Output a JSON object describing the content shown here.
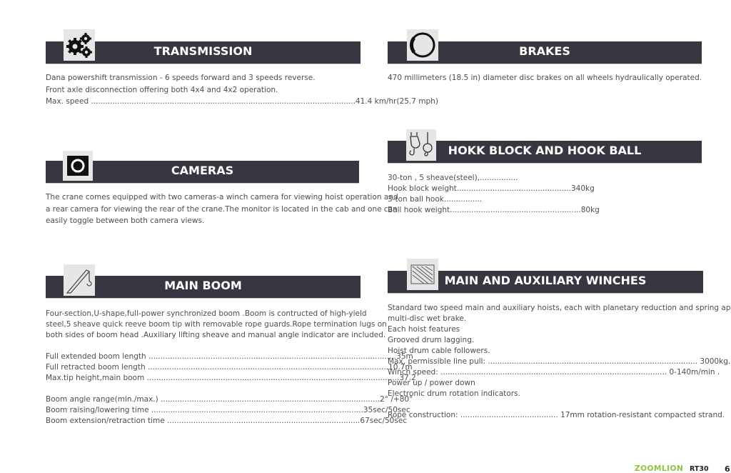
{
  "sections": {
    "transmission": {
      "title": "TRANSMISSION",
      "icon": "gears-icon",
      "lines": [
        "Dana powershift transmission - 6 speeds forward and 3 speeds reverse.",
        "Front axle disconnection offering both 4x4 and 4x2 operation.",
        "Max. speed ...............................................................................................................41.4 km/hr(25.7 mph)"
      ]
    },
    "brakes": {
      "title": "BRAKES",
      "icon": "disc-brake-icon",
      "lines": [
        "470 millimeters (18.5 in) diameter disc brakes on all wheels hydraulically operated."
      ]
    },
    "cameras": {
      "title": "CAMERAS",
      "icon": "camera-icon",
      "lines": [
        "The crane comes equipped with two cameras-a winch camera for viewing hoist operation and",
        "a rear camera for viewing the rear of the crane.The monitor is located in the cab and one can",
        "easily toggle between both camera views."
      ]
    },
    "hook": {
      "title": "HOKK BLOCK AND HOOK BALL",
      "icon": "hook-icon",
      "lines": [
        "30-ton , 5 sheave(steel),................",
        "Hook block weight................................................340kg",
        "3-ton ball hook................",
        "Ball hook weight.......................................................80kg"
      ]
    },
    "boom": {
      "title": "MAIN BOOM",
      "icon": "boom-icon",
      "lines": [
        "Four-section,U-shape,full-power synchronized boom .Boom is contructed of high-yield",
        "steel,5 sheave quick reeve boom tip with removable rope guards.Rope termination lugs on",
        "both sides of boom head .Auxiliary lifting sheave and manual angle indicator are included.",
        "",
        "Full extended boom length ........................................................................................................35m",
        "Full retracted boom length .....................................................................................................10.7m",
        "Max.tip height,main boom ..........................................................................................................37.2",
        "",
        "Boom angle range(min./max.) ............................................................................................2° /+80°",
        "Boom raising/lowering time .........................................................................................35sec/50sec",
        "Boom extension/retraction time .................................................................................67sec/50sec"
      ]
    },
    "winches": {
      "title": "MAIN AND AUXILIARY WINCHES",
      "icon": "winch-drum-icon",
      "lines": [
        "Standard two speed main and auxiliary hoists, each with planetary reduction and spring applied",
        "multi-disc wet brake.",
        "Each hoist features",
        "Grooved drum lagging.",
        "Hoist drum cable followers.",
        "Max. permissible line pull: ........................................................................................ 3000kg.",
        "Winch speed: ............................................................................................... 0-140m/min .",
        "Power up / power down",
        "Electronic drum rotation indicators.",
        "",
        "Rope construction: ......................................... 17mm rotation-resistant compacted strand."
      ]
    }
  },
  "footer": {
    "brand": "ZOOMLION",
    "model": "RT30",
    "page": "6",
    "brand_color": "#8dc63f"
  },
  "colors": {
    "header_bar": "#363741",
    "icon_bg": "#e6e6e6"
  }
}
